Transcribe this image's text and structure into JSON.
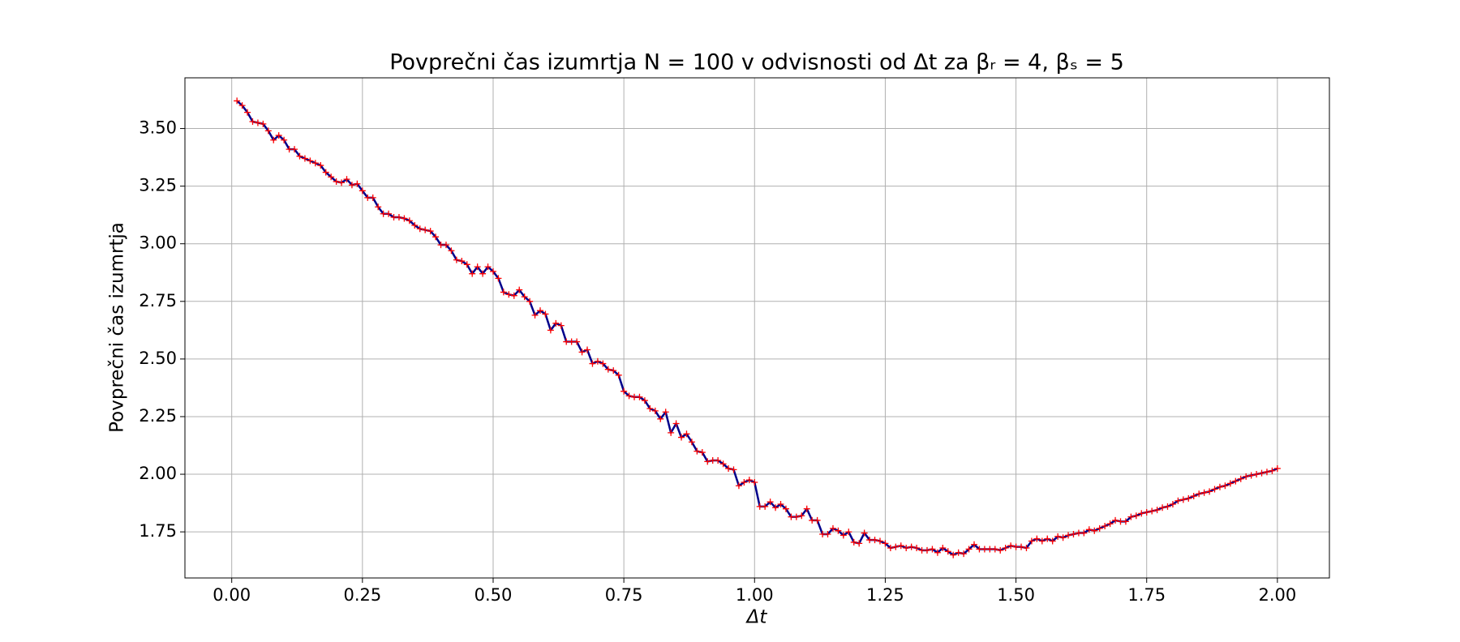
{
  "chart_data": {
    "type": "line",
    "title": "Povprečni čas izumrtja N = 100 v odvisnosti od Δt za  βᵣ = 4, βₛ = 5",
    "xlabel": "Δt",
    "ylabel": "Povprečni čas izumrtja",
    "x": [
      0.01,
      0.02,
      0.03,
      0.04,
      0.05,
      0.06,
      0.07,
      0.08,
      0.09,
      0.1,
      0.11,
      0.12,
      0.13,
      0.14,
      0.15,
      0.16,
      0.17,
      0.18,
      0.19,
      0.2,
      0.21,
      0.22,
      0.23,
      0.24,
      0.25,
      0.26,
      0.27,
      0.28,
      0.29,
      0.3,
      0.31,
      0.32,
      0.33,
      0.34,
      0.35,
      0.36,
      0.37,
      0.38,
      0.39,
      0.4,
      0.41,
      0.42,
      0.43,
      0.44,
      0.45,
      0.46,
      0.47,
      0.48,
      0.49,
      0.5,
      0.51,
      0.52,
      0.53,
      0.54,
      0.55,
      0.56,
      0.57,
      0.58,
      0.59,
      0.6,
      0.61,
      0.62,
      0.63,
      0.64,
      0.65,
      0.66,
      0.67,
      0.68,
      0.69,
      0.7,
      0.71,
      0.72,
      0.73,
      0.74,
      0.75,
      0.76,
      0.77,
      0.78,
      0.79,
      0.8,
      0.81,
      0.82,
      0.83,
      0.84,
      0.85,
      0.86,
      0.87,
      0.88,
      0.89,
      0.9,
      0.91,
      0.92,
      0.93,
      0.94,
      0.95,
      0.96,
      0.97,
      0.98,
      0.99,
      1.0,
      1.01,
      1.02,
      1.03,
      1.04,
      1.05,
      1.06,
      1.07,
      1.08,
      1.09,
      1.1,
      1.11,
      1.12,
      1.13,
      1.14,
      1.15,
      1.16,
      1.17,
      1.18,
      1.19,
      1.2,
      1.21,
      1.22,
      1.23,
      1.24,
      1.25,
      1.26,
      1.27,
      1.28,
      1.29,
      1.3,
      1.31,
      1.32,
      1.33,
      1.34,
      1.35,
      1.36,
      1.37,
      1.38,
      1.39,
      1.4,
      1.41,
      1.42,
      1.43,
      1.44,
      1.45,
      1.46,
      1.47,
      1.48,
      1.49,
      1.5,
      1.51,
      1.52,
      1.53,
      1.54,
      1.55,
      1.56,
      1.57,
      1.58,
      1.59,
      1.6,
      1.61,
      1.62,
      1.63,
      1.64,
      1.65,
      1.66,
      1.67,
      1.68,
      1.69,
      1.7,
      1.71,
      1.72,
      1.73,
      1.74,
      1.75,
      1.76,
      1.77,
      1.78,
      1.79,
      1.8,
      1.81,
      1.82,
      1.83,
      1.84,
      1.85,
      1.86,
      1.87,
      1.88,
      1.89,
      1.9,
      1.91,
      1.92,
      1.93,
      1.94,
      1.95,
      1.96,
      1.97,
      1.98,
      1.99,
      2.0
    ],
    "values": [
      3.62,
      3.6,
      3.57,
      3.53,
      3.525,
      3.52,
      3.49,
      3.45,
      3.47,
      3.45,
      3.41,
      3.41,
      3.38,
      3.37,
      3.36,
      3.35,
      3.34,
      3.31,
      3.29,
      3.27,
      3.265,
      3.28,
      3.255,
      3.26,
      3.23,
      3.2,
      3.2,
      3.16,
      3.13,
      3.13,
      3.115,
      3.115,
      3.11,
      3.1,
      3.08,
      3.065,
      3.06,
      3.055,
      3.03,
      2.995,
      2.995,
      2.97,
      2.93,
      2.925,
      2.91,
      2.87,
      2.9,
      2.87,
      2.9,
      2.88,
      2.85,
      2.79,
      2.78,
      2.775,
      2.8,
      2.77,
      2.75,
      2.69,
      2.71,
      2.695,
      2.625,
      2.655,
      2.645,
      2.575,
      2.575,
      2.575,
      2.53,
      2.54,
      2.48,
      2.49,
      2.48,
      2.455,
      2.45,
      2.43,
      2.36,
      2.34,
      2.335,
      2.335,
      2.32,
      2.285,
      2.275,
      2.24,
      2.27,
      2.18,
      2.22,
      2.16,
      2.175,
      2.14,
      2.1,
      2.095,
      2.055,
      2.06,
      2.06,
      2.045,
      2.025,
      2.02,
      1.95,
      1.965,
      1.975,
      1.965,
      1.86,
      1.86,
      1.88,
      1.855,
      1.87,
      1.85,
      1.815,
      1.815,
      1.82,
      1.85,
      1.8,
      1.8,
      1.74,
      1.74,
      1.765,
      1.755,
      1.735,
      1.75,
      1.705,
      1.7,
      1.745,
      1.715,
      1.715,
      1.71,
      1.7,
      1.68,
      1.685,
      1.69,
      1.68,
      1.685,
      1.68,
      1.67,
      1.67,
      1.675,
      1.66,
      1.68,
      1.665,
      1.65,
      1.66,
      1.655,
      1.675,
      1.695,
      1.675,
      1.675,
      1.675,
      1.675,
      1.67,
      1.68,
      1.69,
      1.685,
      1.685,
      1.68,
      1.71,
      1.72,
      1.71,
      1.72,
      1.71,
      1.73,
      1.725,
      1.735,
      1.74,
      1.745,
      1.745,
      1.76,
      1.755,
      1.765,
      1.775,
      1.785,
      1.8,
      1.795,
      1.795,
      1.815,
      1.82,
      1.83,
      1.835,
      1.84,
      1.845,
      1.855,
      1.86,
      1.87,
      1.885,
      1.89,
      1.895,
      1.905,
      1.915,
      1.92,
      1.925,
      1.935,
      1.945,
      1.95,
      1.96,
      1.97,
      1.98,
      1.99,
      1.995,
      2.0,
      2.005,
      2.01,
      2.015,
      2.025
    ],
    "line_color": "#00008b",
    "marker_color": "#ff0000",
    "xlim": [
      -0.0895,
      2.0995
    ],
    "xticks": [
      {
        "value": 0,
        "label": "0.00"
      },
      0.25,
      {
        "value": 0.5,
        "label": "0.50"
      },
      0.75,
      {
        "value": 1,
        "label": "1.00"
      },
      1.25,
      {
        "value": 1.5,
        "label": "1.50"
      },
      1.75,
      {
        "value": 2,
        "label": "2.00"
      }
    ],
    "ylim": [
      1.55,
      3.72
    ],
    "yticks": [
      1.75,
      {
        "value": 2,
        "label": "2.00"
      },
      2.25,
      {
        "value": 2.5,
        "label": "2.50"
      },
      2.75,
      {
        "value": 3,
        "label": "3.00"
      },
      3.25,
      {
        "value": 3.5,
        "label": "3.50"
      }
    ],
    "grid": true
  }
}
